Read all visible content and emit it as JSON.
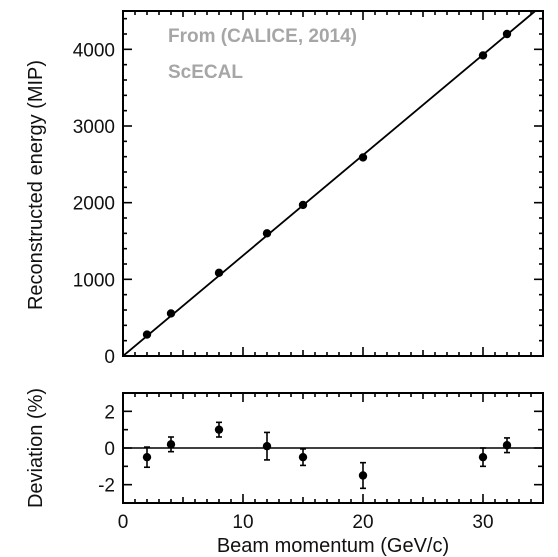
{
  "chart_data": [
    {
      "type": "scatter",
      "panel": "top",
      "annotations": [
        "From (CALICE, 2014)",
        "ScECAL"
      ],
      "xlabel": "",
      "ylabel": "Reconstructed energy (MIP)",
      "xlim": [
        0,
        35
      ],
      "ylim": [
        0,
        4500
      ],
      "yticks": [
        0,
        1000,
        2000,
        3000,
        4000
      ],
      "series": [
        {
          "x": [
            2,
            4,
            8,
            12,
            15,
            20,
            30,
            32
          ],
          "y": [
            280,
            555,
            1085,
            1600,
            1970,
            2590,
            3920,
            4200
          ]
        }
      ],
      "fit_line": {
        "slope": 131,
        "intercept": 0
      }
    },
    {
      "type": "scatter",
      "panel": "bottom",
      "xlabel": "Beam momentum (GeV/c)",
      "ylabel": "Deviation (%)",
      "xlim": [
        0,
        35
      ],
      "ylim": [
        -3,
        3
      ],
      "xticks": [
        0,
        10,
        20,
        30
      ],
      "yticks": [
        -2,
        0,
        2
      ],
      "reference_line": 0,
      "series": [
        {
          "x": [
            2,
            4,
            8,
            12,
            15,
            20,
            30,
            32
          ],
          "y": [
            -0.5,
            0.2,
            1.0,
            0.1,
            -0.5,
            -1.5,
            -0.5,
            0.15
          ],
          "yerr": [
            0.55,
            0.4,
            0.4,
            0.75,
            0.45,
            0.7,
            0.5,
            0.4
          ]
        }
      ]
    }
  ]
}
